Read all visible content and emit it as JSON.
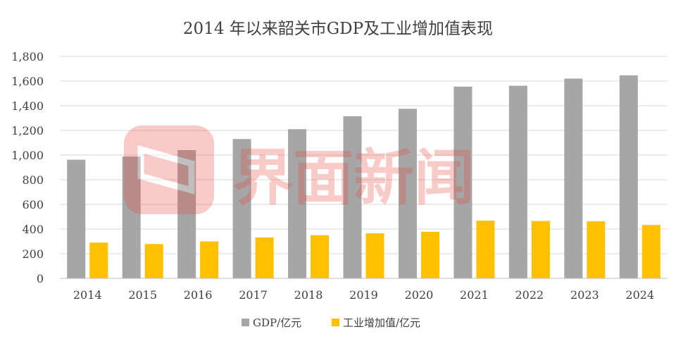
{
  "chart_data": {
    "type": "bar",
    "title": "2014 年以来韶关市GDP及工业增加值表现",
    "categories": [
      "2014",
      "2015",
      "2016",
      "2017",
      "2018",
      "2019",
      "2020",
      "2021",
      "2022",
      "2023",
      "2024"
    ],
    "series": [
      {
        "name": "GDP/亿元",
        "color": "#a6a6a6",
        "values": [
          962,
          988,
          1040,
          1130,
          1210,
          1315,
          1375,
          1555,
          1562,
          1620,
          1646
        ]
      },
      {
        "name": "工业增加值/亿元",
        "color": "#ffc000",
        "values": [
          290,
          278,
          300,
          332,
          350,
          365,
          378,
          468,
          465,
          463,
          433
        ]
      }
    ],
    "ylim": [
      0,
      1800
    ],
    "yticks": [
      "0",
      "200",
      "400",
      "600",
      "800",
      "1,000",
      "1,200",
      "1,400",
      "1,600",
      "1,800"
    ],
    "grid": true,
    "legend_position": "bottom"
  },
  "watermark": {
    "text": "界面新闻",
    "color": "#e8453c"
  }
}
